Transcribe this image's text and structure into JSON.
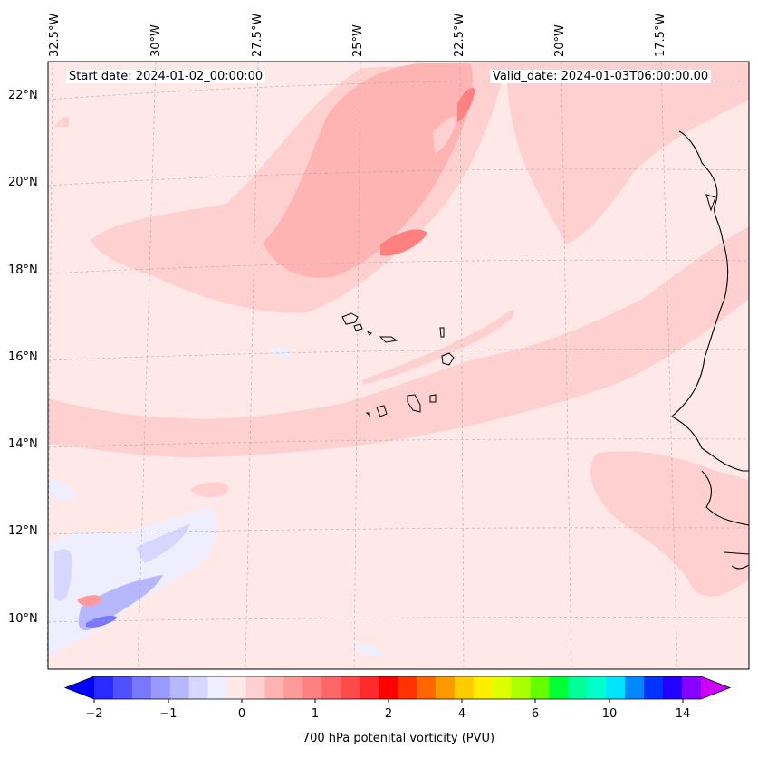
{
  "map": {
    "start_date": "Start date: 2024-01-02_00:00:00",
    "valid_date": "Valid_date: 2024-01-03T06:00:00.00",
    "lon_labels": [
      "32.5°W",
      "30°W",
      "27.5°W",
      "25°W",
      "22.5°W",
      "20°W",
      "17.5°W"
    ],
    "lat_labels": [
      "22°N",
      "20°N",
      "18°N",
      "16°N",
      "14°N",
      "12°N",
      "10°N"
    ]
  },
  "colorbar": {
    "label": "700 hPa potenital vorticity (PVU)",
    "ticks": [
      "−2",
      "−1",
      "0",
      "1",
      "2",
      "4",
      "6",
      "10",
      "14"
    ],
    "colors": [
      "#0000ff",
      "#2a2aff",
      "#5050ff",
      "#7777ff",
      "#9999ff",
      "#b7b7ff",
      "#d6d6ff",
      "#eeeeff",
      "#ffe8e8",
      "#ffd0d0",
      "#ffb3b3",
      "#ff9a9a",
      "#ff8080",
      "#ff6666",
      "#ff4a4a",
      "#ff2a2a",
      "#ff0000",
      "#ff3300",
      "#ff6600",
      "#ff9900",
      "#ffcc00",
      "#ffee00",
      "#ddff00",
      "#aaff00",
      "#66ff00",
      "#00ff33",
      "#00ff99",
      "#00ffcc",
      "#00e5ff",
      "#0088ff",
      "#0033ff",
      "#2200ff",
      "#8800ff",
      "#cc00ff"
    ]
  }
}
